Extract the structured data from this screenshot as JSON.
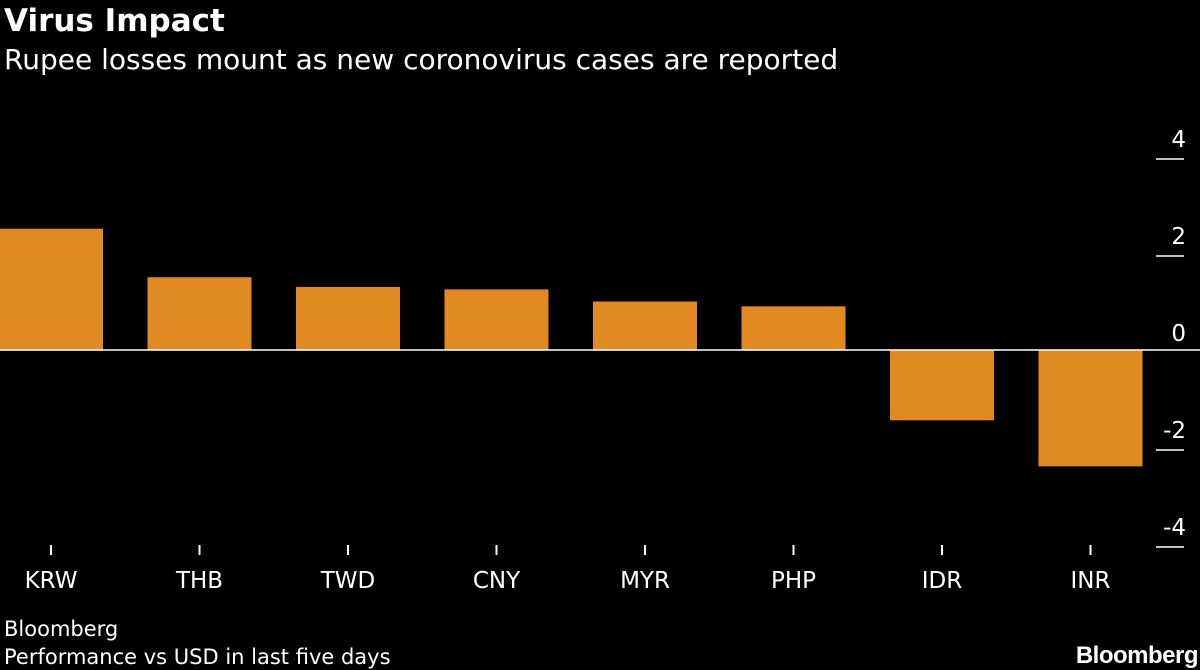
{
  "chart_data": {
    "type": "bar",
    "title": "Virus Impact",
    "subtitle": "Rupee losses mount as new coronovirus cases are reported",
    "categories": [
      "KRW",
      "THB",
      "TWD",
      "CNY",
      "MYR",
      "PHP",
      "IDR",
      "INR"
    ],
    "values": [
      2.5,
      1.5,
      1.3,
      1.25,
      1.0,
      0.9,
      -1.45,
      -2.4
    ],
    "ylim": [
      -4,
      4
    ],
    "yticks": [
      4,
      2,
      0,
      -2,
      -4
    ],
    "xlabel": "",
    "ylabel": "",
    "grid": false,
    "bar_color": "#e08a21",
    "axis_side": "right"
  },
  "footer": {
    "source": "Bloomberg",
    "note": "Performance vs USD in last five days",
    "brand": "Bloomberg"
  },
  "colors": {
    "background": "#000000",
    "text": "#ffffff",
    "bar": "#e08a21"
  }
}
